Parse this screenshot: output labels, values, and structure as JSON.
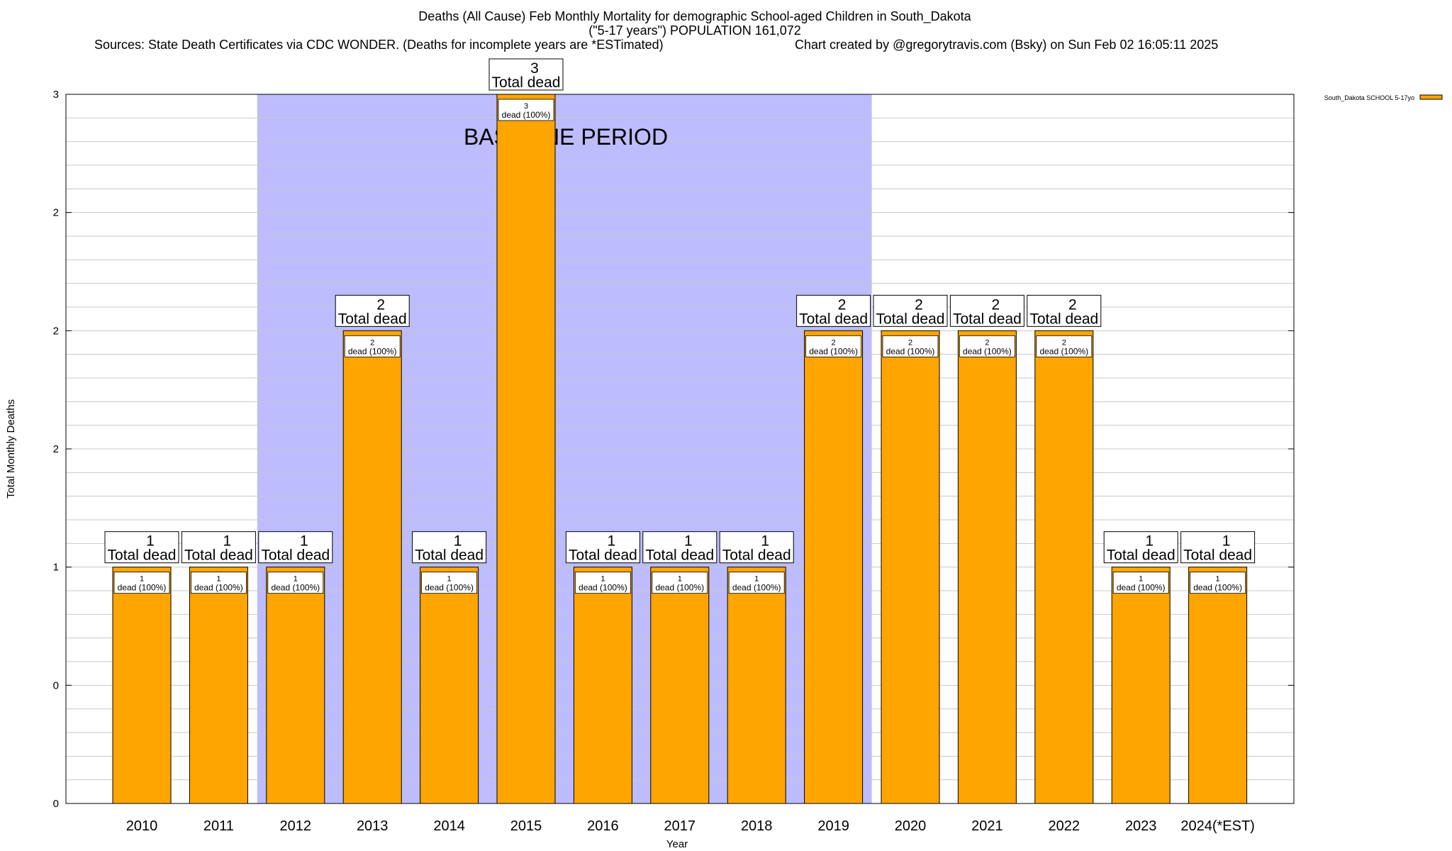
{
  "header": {
    "title": "Deaths (All Cause) Feb Monthly Mortality for demographic School-aged Children in South_Dakota",
    "subtitle": "(\"5-17 years\") POPULATION 161,072",
    "sources": "Sources: State Death Certificates via CDC WONDER. (Deaths for incomplete years are *ESTimated)",
    "credit": "Chart created by @gregorytravis.com (Bsky) on Sun Feb 02 16:05:11 2025"
  },
  "chart_data": {
    "type": "bar",
    "xlabel": "Year",
    "ylabel": "Total Monthly Deaths",
    "ylim": [
      0,
      3
    ],
    "yticks": [
      0,
      0.5,
      1,
      1.5,
      2,
      2.5,
      3
    ],
    "ytick_labels": [
      "0",
      "0",
      "1",
      "2",
      "2",
      "2",
      "3"
    ],
    "grid": true,
    "legend_position": "top-right",
    "categories": [
      "2010",
      "2011",
      "2012",
      "2013",
      "2014",
      "2015",
      "2016",
      "2017",
      "2018",
      "2019",
      "2020",
      "2021",
      "2022",
      "2023",
      "2024(*EST)"
    ],
    "series": [
      {
        "name": "South_Dakota SCHOOL 5-17yo",
        "color": "#ffa500",
        "values": [
          1,
          1,
          1,
          2,
          1,
          3,
          1,
          1,
          1,
          2,
          2,
          2,
          2,
          1,
          1
        ]
      }
    ],
    "total_label_suffix": "Total dead",
    "inner_label_suffix": "dead (100%)",
    "baseline": {
      "label": "BASELINE PERIOD",
      "start_category": "2012",
      "end_category": "2019",
      "color": "#bcbcff"
    }
  }
}
